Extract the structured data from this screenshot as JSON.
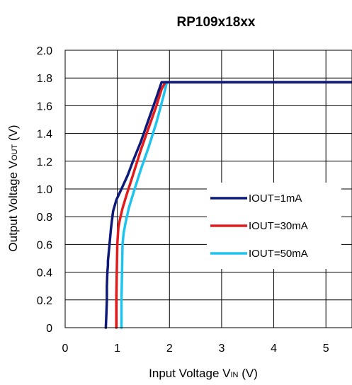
{
  "chart_data": {
    "type": "line",
    "title": "RP109x18xx",
    "xlabel": {
      "prefix": "Input Voltage V",
      "sub": "IN",
      "suffix": " (V)"
    },
    "ylabel": {
      "prefix": "Output Voltage V",
      "sub": "OUT",
      "suffix": " (V)"
    },
    "xlim": [
      0,
      5.5
    ],
    "ylim": [
      0,
      2.0
    ],
    "xticks": [
      0,
      1,
      2,
      3,
      4,
      5
    ],
    "yticks": [
      0,
      0.2,
      0.4,
      0.6,
      0.8,
      1.0,
      1.2,
      1.4,
      1.6,
      1.8,
      2.0
    ],
    "xtick_labels": [
      "0",
      "1",
      "2",
      "3",
      "4",
      "5"
    ],
    "ytick_labels": [
      "0",
      "0.2",
      "0.4",
      "0.6",
      "0.8",
      "1.0",
      "1.2",
      "1.4",
      "1.6",
      "1.8",
      "2.0"
    ],
    "grid": true,
    "legend_position": "right",
    "series": [
      {
        "name": "IOUT=1mA",
        "color": "#0d1a7a",
        "x": [
          0.78,
          0.79,
          0.8,
          0.8,
          0.81,
          0.82,
          0.82,
          0.85,
          0.88,
          0.92,
          0.98,
          1.08,
          1.2,
          1.3,
          1.45,
          1.6,
          1.75,
          1.85,
          1.9,
          5.5
        ],
        "y": [
          0.0,
          0.1,
          0.2,
          0.3,
          0.4,
          0.45,
          0.48,
          0.6,
          0.72,
          0.84,
          0.92,
          1.0,
          1.1,
          1.2,
          1.34,
          1.5,
          1.66,
          1.77,
          1.77,
          1.77
        ]
      },
      {
        "name": "IOUT=30mA",
        "color": "#e31b1b",
        "x": [
          0.98,
          0.98,
          0.99,
          1.0,
          1.02,
          1.05,
          1.1,
          1.18,
          1.3,
          1.45,
          1.6,
          1.75,
          1.85,
          1.92,
          5.5
        ],
        "y": [
          0.0,
          0.2,
          0.4,
          0.6,
          0.72,
          0.78,
          0.86,
          0.96,
          1.1,
          1.28,
          1.44,
          1.6,
          1.72,
          1.77,
          1.77
        ]
      },
      {
        "name": "IOUT=50mA",
        "color": "#1ec3ee",
        "x": [
          1.08,
          1.08,
          1.09,
          1.1,
          1.12,
          1.16,
          1.22,
          1.3,
          1.45,
          1.6,
          1.75,
          1.88,
          1.95,
          5.5
        ],
        "y": [
          0.0,
          0.2,
          0.4,
          0.6,
          0.68,
          0.76,
          0.86,
          0.96,
          1.14,
          1.3,
          1.48,
          1.66,
          1.77,
          1.77
        ]
      }
    ]
  }
}
